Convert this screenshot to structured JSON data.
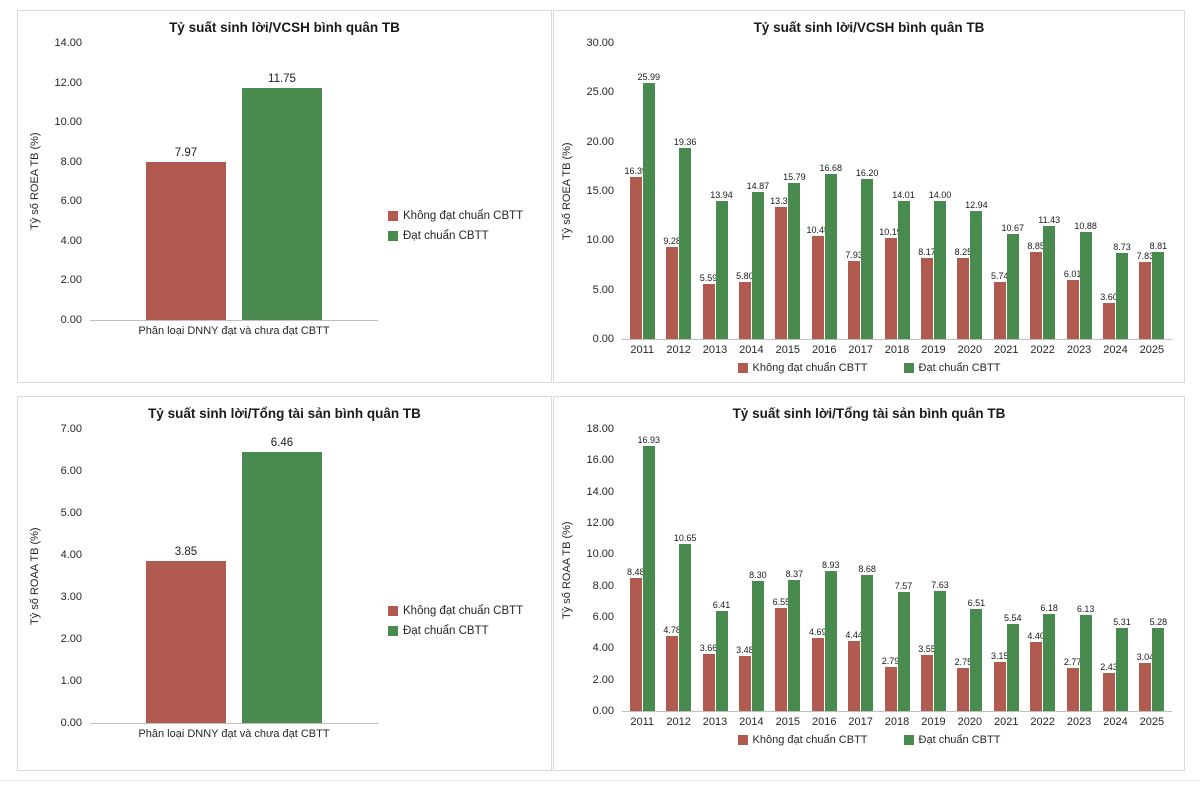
{
  "colors": {
    "fail": "#B05A50",
    "pass": "#498B4E",
    "panel_border": "#D9D9D9",
    "axis_line": "#BFBFBF",
    "text": "#262626"
  },
  "legend_labels": {
    "fail": "Không đạt chuẩn CBTT",
    "pass": "Đạt chuẩn CBTT"
  },
  "chart_data": [
    {
      "type": "bar",
      "title": "Tỷ suất sinh lời/VCSH bình quân TB",
      "ylabel": "Tỷ số ROEA TB (%)",
      "xlabel": "",
      "categories": [
        "Phân loại DNNY đạt và chưa đạt CBTT"
      ],
      "series": [
        {
          "name": "Không đạt chuẩn CBTT",
          "color": "#B05A50",
          "values": [
            7.97
          ]
        },
        {
          "name": "Đạt chuẩn CBTT",
          "color": "#498B4E",
          "values": [
            11.75
          ]
        }
      ],
      "ylim": [
        0,
        14
      ],
      "ytick_step": 2,
      "grid": false,
      "legend_position": "right"
    },
    {
      "type": "bar",
      "title": "Tỷ suất sinh lời/VCSH bình quân TB",
      "ylabel": "Tỷ số ROEA TB (%)",
      "xlabel": "",
      "categories": [
        "2011",
        "2012",
        "2013",
        "2014",
        "2015",
        "2016",
        "2017",
        "2018",
        "2019",
        "2020",
        "2021",
        "2022",
        "2023",
        "2024",
        "2025"
      ],
      "series": [
        {
          "name": "Không đạt chuẩn CBTT",
          "color": "#B05A50",
          "values": [
            16.39,
            9.28,
            5.59,
            5.8,
            13.37,
            10.45,
            7.93,
            10.19,
            8.17,
            8.25,
            5.74,
            8.85,
            6.01,
            3.6,
            7.83
          ]
        },
        {
          "name": "Đạt chuẩn CBTT",
          "color": "#498B4E",
          "values": [
            25.99,
            19.36,
            13.94,
            14.87,
            15.79,
            16.68,
            16.2,
            14.01,
            14.0,
            12.94,
            10.67,
            11.43,
            10.88,
            8.73,
            8.81
          ]
        }
      ],
      "ylim": [
        0,
        30
      ],
      "ytick_step": 5,
      "grid": false,
      "legend_position": "bottom"
    },
    {
      "type": "bar",
      "title": "Tỷ suất sinh lời/Tổng tài sản bình quân TB",
      "ylabel": "Tỷ số ROAA TB (%)",
      "xlabel": "",
      "categories": [
        "Phân loại DNNY đạt và chưa đạt CBTT"
      ],
      "series": [
        {
          "name": "Không đạt chuẩn CBTT",
          "color": "#B05A50",
          "values": [
            3.85
          ]
        },
        {
          "name": "Đạt chuẩn CBTT",
          "color": "#498B4E",
          "values": [
            6.46
          ]
        }
      ],
      "ylim": [
        0,
        7
      ],
      "ytick_step": 1,
      "grid": false,
      "legend_position": "right"
    },
    {
      "type": "bar",
      "title": "Tỷ suất sinh lời/Tổng tài sản bình quân TB",
      "ylabel": "Tỷ số ROAA TB (%)",
      "xlabel": "",
      "categories": [
        "2011",
        "2012",
        "2013",
        "2014",
        "2015",
        "2016",
        "2017",
        "2018",
        "2019",
        "2020",
        "2021",
        "2022",
        "2023",
        "2024",
        "2025"
      ],
      "series": [
        {
          "name": "Không đạt chuẩn CBTT",
          "color": "#B05A50",
          "values": [
            8.48,
            4.78,
            3.66,
            3.48,
            6.55,
            4.69,
            4.44,
            2.79,
            3.55,
            2.75,
            3.15,
            4.4,
            2.77,
            2.43,
            3.04
          ]
        },
        {
          "name": "Đạt chuẩn CBTT",
          "color": "#498B4E",
          "values": [
            16.93,
            10.65,
            6.41,
            8.3,
            8.37,
            8.93,
            8.68,
            7.57,
            7.63,
            6.51,
            5.54,
            6.18,
            6.13,
            5.31,
            5.28
          ]
        }
      ],
      "ylim": [
        0,
        18
      ],
      "ytick_step": 2,
      "grid": false,
      "legend_position": "bottom"
    }
  ]
}
